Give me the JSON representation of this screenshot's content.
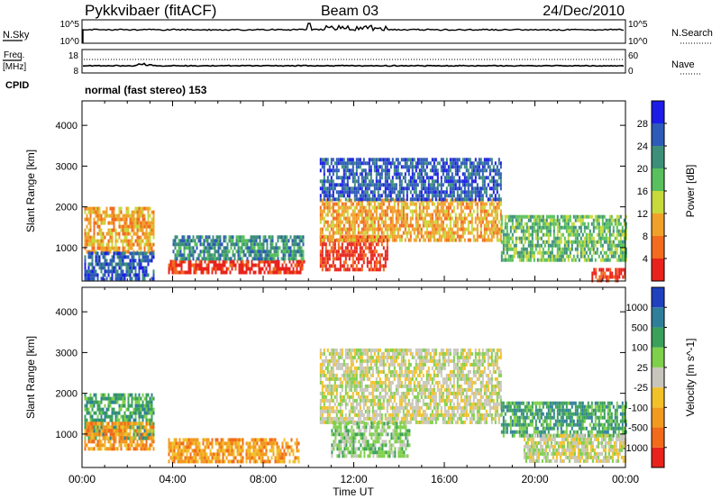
{
  "header": {
    "station": "Pykkvibaer (fitACF)",
    "beam": "Beam 03",
    "date": "24/Dec/2010"
  },
  "top_strips": {
    "nsky": {
      "label": "N.Sky",
      "ticks": [
        "10^5",
        "10^0"
      ]
    },
    "nsearch": {
      "label": "N.Search",
      "ticks": [
        "10^5",
        "10^0"
      ]
    },
    "freq": {
      "label": "Freq.",
      "unit": "[MHz]",
      "ticks": [
        "18",
        "8"
      ]
    },
    "nave": {
      "label": "Nave",
      "ticks": [
        "60",
        "0"
      ]
    },
    "cpid": {
      "label": "CPID",
      "value": "normal (fast stereo) 153"
    }
  },
  "chart_data": [
    {
      "type": "heatmap",
      "panel": "power",
      "ylabel": "Slant Range [km]",
      "ylim": [
        180,
        4600
      ],
      "yticks": [
        "1000",
        "2000",
        "3000",
        "4000"
      ],
      "xlabel": "Time UT",
      "xlim": [
        0,
        24
      ],
      "xticks": [
        "00:00",
        "04:00",
        "08:00",
        "12:00",
        "16:00",
        "20:00",
        "00:00"
      ],
      "colorbar": {
        "label": "Power [dB]",
        "ticks": [
          "4",
          "8",
          "12",
          "16",
          "20",
          "24",
          "28"
        ],
        "colors": [
          "#1c1ce6",
          "#2d5bb7",
          "#3d8f7a",
          "#58c05c",
          "#c7d93b",
          "#f1a12a",
          "#f26b1f",
          "#e8231c"
        ]
      },
      "bands": [
        {
          "t0": 0.1,
          "t1": 3.2,
          "r0": 900,
          "r1": 2000,
          "level": 5
        },
        {
          "t0": 0.1,
          "t1": 3.2,
          "r0": 200,
          "r1": 900,
          "level": 1
        },
        {
          "t0": 3.8,
          "t1": 9.8,
          "r0": 400,
          "r1": 700,
          "level": 7
        },
        {
          "t0": 4.0,
          "t1": 9.8,
          "r0": 700,
          "r1": 1300,
          "level": 2
        },
        {
          "t0": 10.5,
          "t1": 13.5,
          "r0": 500,
          "r1": 1300,
          "level": 7
        },
        {
          "t0": 10.5,
          "t1": 18.5,
          "r0": 1200,
          "r1": 2200,
          "level": 5
        },
        {
          "t0": 10.5,
          "t1": 18.5,
          "r0": 2200,
          "r1": 3200,
          "level": 1
        },
        {
          "t0": 18.5,
          "t1": 24.0,
          "r0": 700,
          "r1": 1800,
          "level": 3
        },
        {
          "t0": 22.5,
          "t1": 24.0,
          "r0": 200,
          "r1": 500,
          "level": 7
        }
      ]
    },
    {
      "type": "heatmap",
      "panel": "velocity",
      "ylabel": "Slant Range [km]",
      "ylim": [
        180,
        4600
      ],
      "yticks": [
        "1000",
        "2000",
        "3000",
        "4000"
      ],
      "xlabel": "Time UT",
      "xlim": [
        0,
        24
      ],
      "xticks": [
        "00:00",
        "04:00",
        "08:00",
        "12:00",
        "16:00",
        "20:00",
        "00:00"
      ],
      "colorbar": {
        "label": "Velocity [m s^-1]",
        "ticks": [
          "1000",
          "500",
          "100",
          "25",
          "-25",
          "-100",
          "-500",
          "-1000"
        ],
        "colors": [
          "#2040c0",
          "#2f7f9a",
          "#3aa05a",
          "#7fd04a",
          "#c8c6bc",
          "#f2c12a",
          "#f29a20",
          "#f26a1a",
          "#e8231c"
        ]
      },
      "bands": [
        {
          "t0": 0.1,
          "t1": 3.2,
          "r0": 900,
          "r1": 2000,
          "level": 2
        },
        {
          "t0": 0.1,
          "t1": 3.2,
          "r0": 600,
          "r1": 1300,
          "level": 6
        },
        {
          "t0": 3.8,
          "t1": 9.6,
          "r0": 350,
          "r1": 900,
          "level": 6
        },
        {
          "t0": 10.5,
          "t1": 18.5,
          "r0": 1300,
          "r1": 3100,
          "level": 4
        },
        {
          "t0": 11.0,
          "t1": 14.5,
          "r0": 500,
          "r1": 1300,
          "level": 3
        },
        {
          "t0": 18.5,
          "t1": 24.0,
          "r0": 1000,
          "r1": 1800,
          "level": 2
        },
        {
          "t0": 19.5,
          "t1": 24.0,
          "r0": 300,
          "r1": 1000,
          "level": 4
        }
      ]
    }
  ]
}
